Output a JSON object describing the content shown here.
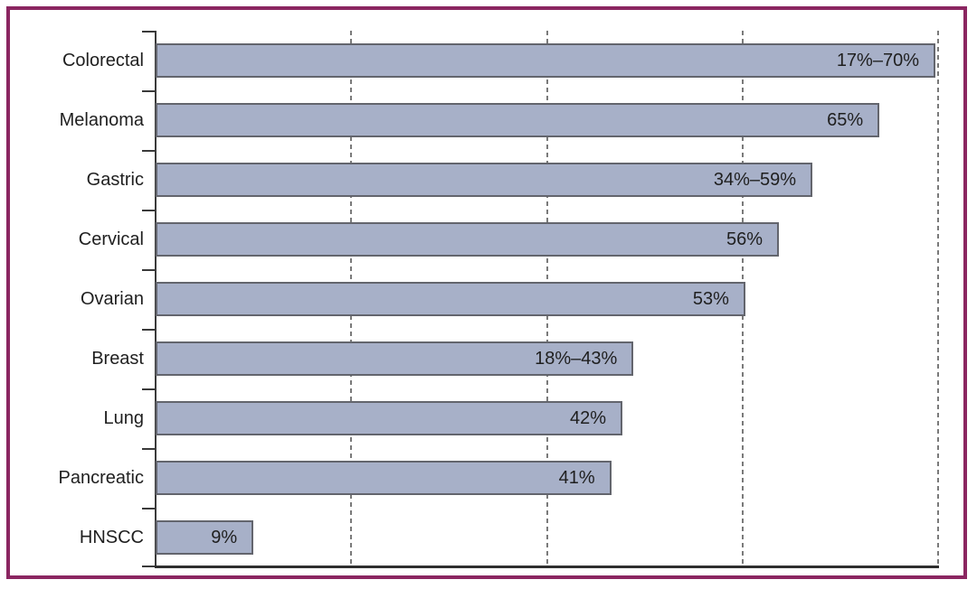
{
  "chart_data": {
    "type": "bar",
    "orientation": "horizontal",
    "title": "",
    "xlabel": "",
    "ylabel": "",
    "categories": [
      "Colorectal",
      "Melanoma",
      "Gastric",
      "Cervical",
      "Ovarian",
      "Breast",
      "Lung",
      "Pancreatic",
      "HNSCC"
    ],
    "values": [
      70,
      65,
      59,
      56,
      53,
      43,
      42,
      41,
      9
    ],
    "bar_labels": [
      "17%–70%",
      "65%",
      "34%–59%",
      "56%",
      "53%",
      "18%–43%",
      "42%",
      "41%",
      "9%"
    ],
    "xlim": [
      0,
      70
    ],
    "gridlines_at": [
      17.5,
      35,
      52.5,
      70
    ],
    "grid_style": "dashed-vertical",
    "legend": "none",
    "tick_labels_shown": false
  },
  "colors": {
    "bar_fill": "#a7b0c8",
    "bar_border": "#63656d",
    "gridline": "#7a7a7a",
    "axis": "#3a3a3a",
    "text": "#1f1f1f",
    "frame_border": "#8b2661",
    "background": "#ffffff"
  }
}
